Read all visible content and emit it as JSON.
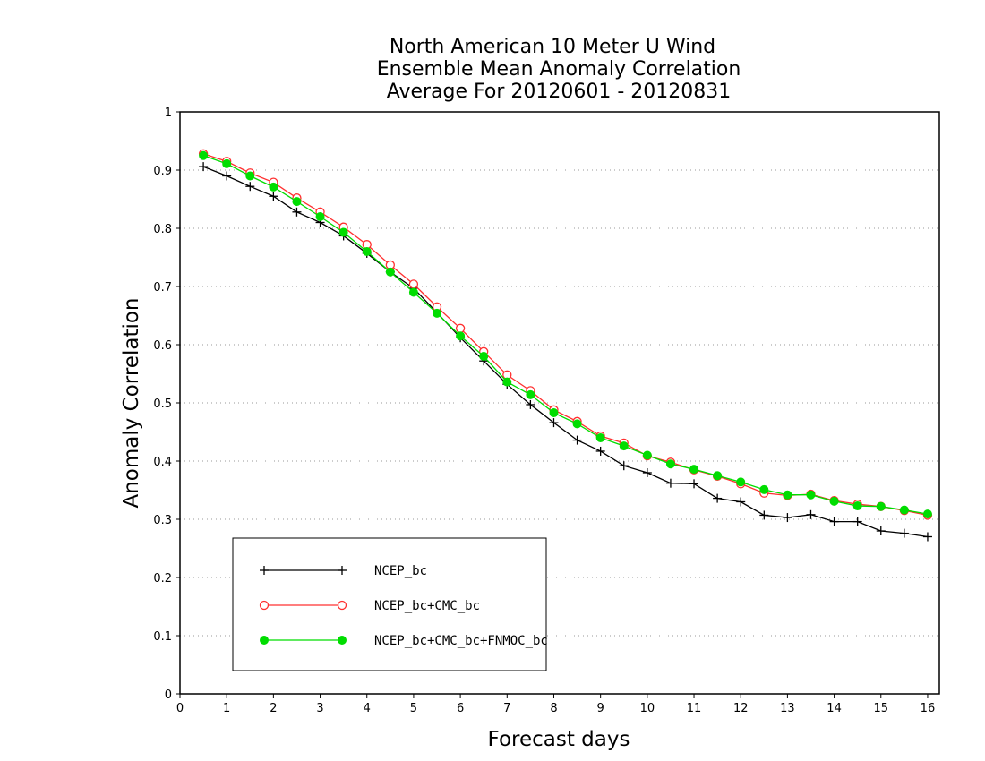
{
  "chart_data": {
    "type": "line",
    "title": [
      "North American 10 Meter U Wind",
      "Ensemble Mean Anomaly Correlation",
      "Average For 20120601 - 20120831"
    ],
    "xlabel": "Forecast days",
    "ylabel": "Anomaly Correlation",
    "xlim": [
      0,
      16.25
    ],
    "ylim": [
      0,
      1
    ],
    "xticks": [
      "0",
      "1",
      "2",
      "3",
      "4",
      "5",
      "6",
      "7",
      "8",
      "9",
      "10",
      "11",
      "12",
      "13",
      "14",
      "15",
      "16"
    ],
    "yticks": [
      "0",
      "0.1",
      "0.2",
      "0.3",
      "0.4",
      "0.5",
      "0.6",
      "0.7",
      "0.8",
      "0.9",
      "1"
    ],
    "grid": "horizontal dotted",
    "legend_position": "bottom-left",
    "x": [
      0.5,
      1,
      1.5,
      2,
      2.5,
      3,
      3.5,
      4,
      4.5,
      5,
      5.5,
      6,
      6.5,
      7,
      7.5,
      8,
      8.5,
      9,
      9.5,
      10,
      10.5,
      11,
      11.5,
      12,
      12.5,
      13,
      13.5,
      14,
      14.5,
      15,
      15.5,
      16
    ],
    "series": [
      {
        "name": "NCEP_bc",
        "color": "#000000",
        "marker": "plus",
        "values": [
          0.906,
          0.89,
          0.872,
          0.855,
          0.828,
          0.81,
          0.787,
          0.757,
          0.725,
          0.697,
          0.655,
          0.612,
          0.572,
          0.532,
          0.497,
          0.466,
          0.436,
          0.417,
          0.392,
          0.38,
          0.362,
          0.361,
          0.336,
          0.33,
          0.307,
          0.303,
          0.308,
          0.296,
          0.296,
          0.28,
          0.276,
          0.27
        ]
      },
      {
        "name": "NCEP_bc+CMC_bc",
        "color": "#ff3030",
        "marker": "open-circle",
        "values": [
          0.928,
          0.915,
          0.895,
          0.879,
          0.852,
          0.828,
          0.802,
          0.772,
          0.737,
          0.704,
          0.665,
          0.628,
          0.588,
          0.548,
          0.521,
          0.488,
          0.468,
          0.443,
          0.431,
          0.409,
          0.398,
          0.385,
          0.374,
          0.361,
          0.345,
          0.341,
          0.343,
          0.332,
          0.326,
          0.322,
          0.315,
          0.307
        ]
      },
      {
        "name": "NCEP_bc+CMC_bc+FNMOC_bc",
        "color": "#00dd00",
        "marker": "filled-circle",
        "values": [
          0.925,
          0.911,
          0.89,
          0.871,
          0.846,
          0.82,
          0.793,
          0.76,
          0.725,
          0.69,
          0.654,
          0.615,
          0.58,
          0.536,
          0.514,
          0.483,
          0.464,
          0.44,
          0.426,
          0.41,
          0.395,
          0.386,
          0.375,
          0.364,
          0.351,
          0.342,
          0.342,
          0.331,
          0.323,
          0.322,
          0.316,
          0.309
        ]
      }
    ]
  }
}
